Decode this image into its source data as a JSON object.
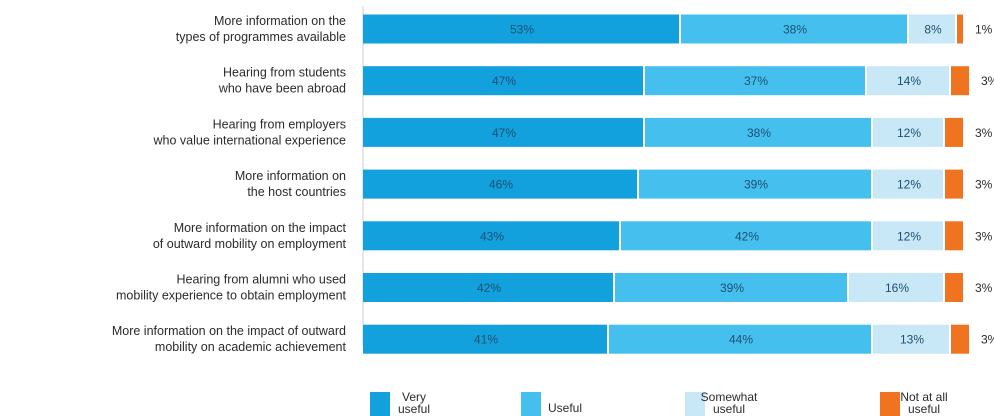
{
  "chart_data": {
    "type": "bar",
    "orientation": "horizontal",
    "stacked": true,
    "categories": [
      "More information on the\ntypes of programmes available",
      "Hearing from students\nwho have been abroad",
      "Hearing from employers\nwho value international experience",
      "More information on\nthe host countries",
      "More information on the impact\nof outward mobility on employment",
      "Hearing from alumni who used\nmobility experience to obtain employment",
      "More information on the impact of outward\nmobility on academic achievement"
    ],
    "series": [
      {
        "name": "Very useful",
        "values": [
          53,
          47,
          47,
          46,
          43,
          42,
          41
        ]
      },
      {
        "name": "Useful",
        "values": [
          38,
          37,
          38,
          39,
          42,
          39,
          44
        ]
      },
      {
        "name": "Somewhat useful",
        "values": [
          8,
          14,
          12,
          12,
          12,
          16,
          13
        ]
      },
      {
        "name": "Not at all useful",
        "values": [
          1,
          3,
          3,
          3,
          3,
          3,
          3
        ]
      }
    ],
    "legend_labels": [
      [
        "Very",
        "useful"
      ],
      [
        "Useful"
      ],
      [
        "Somewhat",
        "useful"
      ],
      [
        "Not at all",
        "useful"
      ]
    ],
    "colors": [
      "#12a1dc",
      "#45c0ee",
      "#c8e8f8",
      "#f0731f"
    ],
    "value_suffix": "%",
    "xlim": [
      0,
      100
    ],
    "legend_position": "bottom",
    "grid": false
  }
}
